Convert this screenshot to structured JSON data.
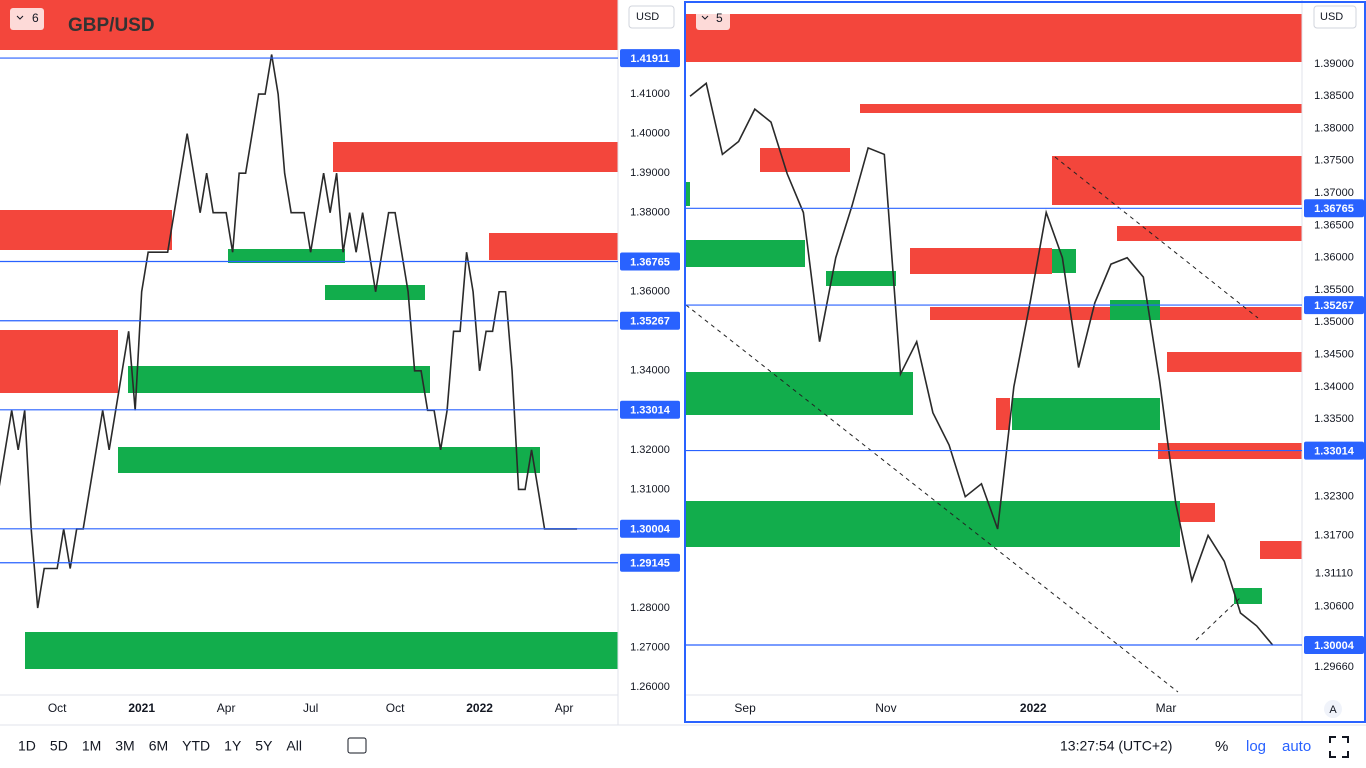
{
  "chart_data": [
    {
      "type": "line",
      "title": "GBP/USD",
      "badge": "6",
      "currency": "USD",
      "series": [
        {
          "name": "GBP/USD",
          "color": "#2a2a2a",
          "values": [
            1.31,
            1.32,
            1.33,
            1.32,
            1.33,
            1.3,
            1.28,
            1.29,
            1.29,
            1.29,
            1.3,
            1.29,
            1.3,
            1.3,
            1.31,
            1.32,
            1.33,
            1.32,
            1.33,
            1.34,
            1.35,
            1.33,
            1.36,
            1.37,
            1.37,
            1.37,
            1.37,
            1.38,
            1.39,
            1.4,
            1.39,
            1.38,
            1.39,
            1.38,
            1.38,
            1.38,
            1.37,
            1.39,
            1.39,
            1.4,
            1.41,
            1.41,
            1.42,
            1.41,
            1.39,
            1.38,
            1.38,
            1.38,
            1.37,
            1.38,
            1.39,
            1.38,
            1.39,
            1.37,
            1.38,
            1.37,
            1.38,
            1.37,
            1.36,
            1.37,
            1.38,
            1.38,
            1.37,
            1.36,
            1.34,
            1.34,
            1.33,
            1.33,
            1.32,
            1.33,
            1.35,
            1.35,
            1.37,
            1.36,
            1.34,
            1.35,
            1.35,
            1.36,
            1.36,
            1.34,
            1.31,
            1.31,
            1.32,
            1.31,
            1.3,
            1.3,
            1.3,
            1.3,
            1.3,
            1.3
          ]
        }
      ],
      "xlim": [
        0.2,
        95.3
      ],
      "xticks": [
        {
          "value": 9,
          "label": "Oct"
        },
        {
          "value": 22,
          "label": "2021"
        },
        {
          "value": 35,
          "label": "Apr"
        },
        {
          "value": 48,
          "label": "Jul"
        },
        {
          "value": 61,
          "label": "Oct"
        },
        {
          "value": 74,
          "label": "2022"
        },
        {
          "value": 87,
          "label": "Apr"
        }
      ],
      "ylim": [
        1.258,
        1.4338
      ],
      "yticks": [
        {
          "value": 1.26,
          "label": "1.26000"
        },
        {
          "value": 1.27,
          "label": "1.27000"
        },
        {
          "value": 1.28,
          "label": "1.28000"
        },
        {
          "value": 1.31,
          "label": "1.31000"
        },
        {
          "value": 1.32,
          "label": "1.32000"
        },
        {
          "value": 1.34,
          "label": "1.34000"
        },
        {
          "value": 1.36,
          "label": "1.36000"
        },
        {
          "value": 1.38,
          "label": "1.38000"
        },
        {
          "value": 1.39,
          "label": "1.39000"
        },
        {
          "value": 1.4,
          "label": "1.40000"
        },
        {
          "value": 1.41,
          "label": "1.41000"
        }
      ],
      "levels": [
        1.41911,
        1.36765,
        1.35267,
        1.33014,
        1.30004,
        1.29145
      ],
      "level_color": "#2962ff"
    },
    {
      "type": "line",
      "badge": "5",
      "currency": "USD",
      "series": [
        {
          "name": "GBP/USD",
          "color": "#2a2a2a",
          "values": [
            1.385,
            1.387,
            1.376,
            1.378,
            1.383,
            1.381,
            1.373,
            1.367,
            1.347,
            1.36,
            1.368,
            1.377,
            1.376,
            1.342,
            1.347,
            1.336,
            1.331,
            1.323,
            1.325,
            1.318,
            1.34,
            1.353,
            1.367,
            1.36,
            1.343,
            1.353,
            1.359,
            1.36,
            1.357,
            1.341,
            1.322,
            1.31,
            1.317,
            1.313,
            1.305,
            1.303,
            1.3
          ]
        }
      ],
      "xlim": [
        -0.25,
        37.8
      ],
      "xticks": [
        {
          "value": 3.4,
          "label": "Sep"
        },
        {
          "value": 12.1,
          "label": "Nov"
        },
        {
          "value": 21.2,
          "label": "2022"
        },
        {
          "value": 29.4,
          "label": "Mar"
        }
      ],
      "ylim": [
        1.2923,
        1.3999
      ],
      "yticks": [
        {
          "value": 1.2966,
          "label": "1.29660"
        },
        {
          "value": 1.306,
          "label": "1.30600"
        },
        {
          "value": 1.3111,
          "label": "1.31110"
        },
        {
          "value": 1.317,
          "label": "1.31700"
        },
        {
          "value": 1.323,
          "label": "1.32300"
        },
        {
          "value": 1.335,
          "label": "1.33500"
        },
        {
          "value": 1.34,
          "label": "1.34000"
        },
        {
          "value": 1.345,
          "label": "1.34500"
        },
        {
          "value": 1.35,
          "label": "1.35000"
        },
        {
          "value": 1.355,
          "label": "1.35500"
        },
        {
          "value": 1.36,
          "label": "1.36000"
        },
        {
          "value": 1.365,
          "label": "1.36500"
        },
        {
          "value": 1.37,
          "label": "1.37000"
        },
        {
          "value": 1.375,
          "label": "1.37500"
        },
        {
          "value": 1.38,
          "label": "1.38000"
        },
        {
          "value": 1.385,
          "label": "1.38500"
        },
        {
          "value": 1.39,
          "label": "1.39000"
        }
      ],
      "levels": [
        1.36765,
        1.35267,
        1.33014,
        1.30004
      ],
      "level_color": "#2962ff",
      "scale_mode": "A"
    }
  ],
  "toolbar": {
    "ranges": [
      "1D",
      "5D",
      "1M",
      "3M",
      "6M",
      "YTD",
      "1Y",
      "5Y",
      "All"
    ],
    "clock": "13:27:54 (UTC+2)",
    "percent": "%",
    "log": "log",
    "auto": "auto"
  }
}
